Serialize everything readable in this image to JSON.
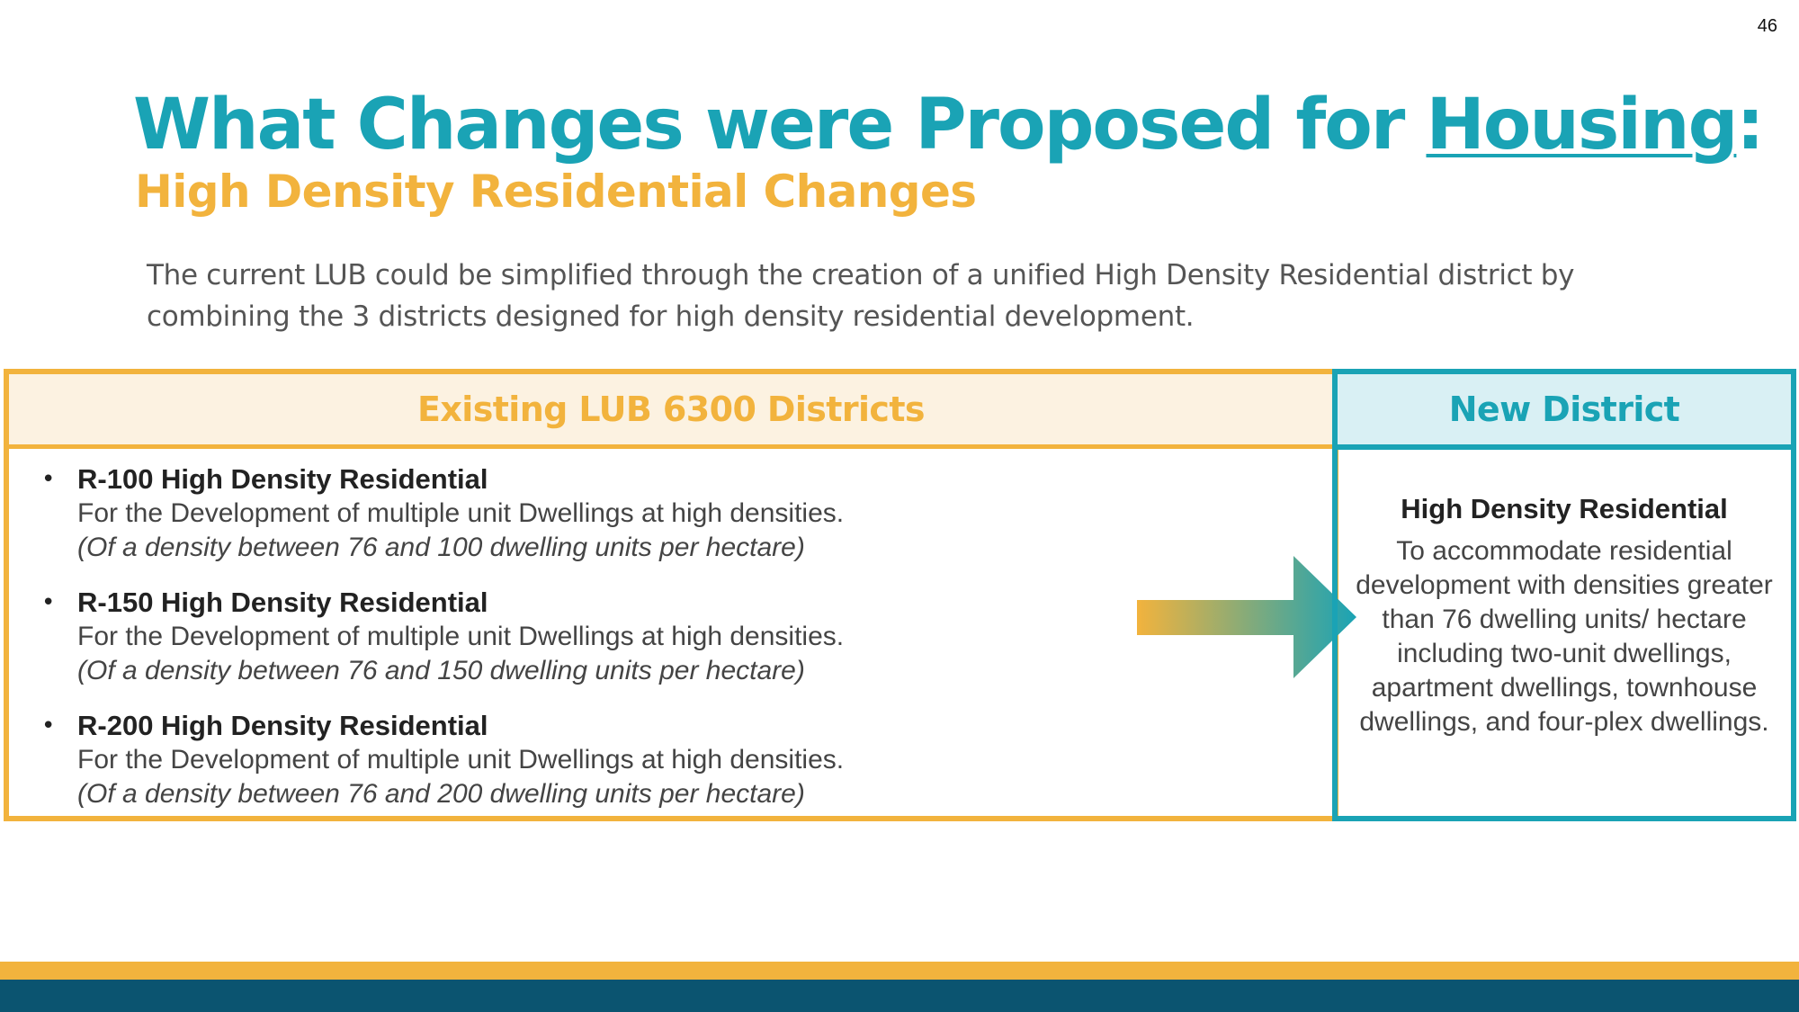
{
  "slide": {
    "page_number": "46"
  },
  "header": {
    "title_prefix": "What Changes were Proposed for ",
    "title_link": "Housing",
    "title_suffix": ":",
    "subtitle": "High Density Residential Changes"
  },
  "intro": {
    "text": "The current LUB could be simplified through the creation of a unified High Density Residential district by combining the 3 districts designed for high density residential development."
  },
  "existing": {
    "header": "Existing LUB 6300 Districts",
    "districts": [
      {
        "name": "R-100 High Density Residential",
        "description": "For the Development of multiple unit Dwellings at high densities.",
        "density": "(Of a density between 76 and 100 dwelling units per hectare)"
      },
      {
        "name": "R-150 High Density Residential",
        "description": "For the Development of multiple unit Dwellings at high densities.",
        "density": "(Of a density between 76 and 150 dwelling units per hectare)"
      },
      {
        "name": "R-200 High Density Residential",
        "description": "For the Development of multiple unit Dwellings at high densities.",
        "density": "(Of a density between 76 and 200 dwelling units per hectare)"
      }
    ]
  },
  "new_district": {
    "header": "New District",
    "name": "High Density Residential",
    "description": "To accommodate residential development with densities greater than 76 dwelling units/ hectare including two-unit dwellings, apartment dwellings, townhouse dwellings, and four-plex dwellings."
  },
  "colors": {
    "teal": "#1aa3b5",
    "gold": "#f2b33d",
    "navy": "#0b5470",
    "gold_tint": "#fcf2e1",
    "teal_tint": "#d9f0f4"
  },
  "icons": {
    "arrow": "gradient-right-arrow-icon",
    "bullet": "bullet-dot-icon"
  }
}
